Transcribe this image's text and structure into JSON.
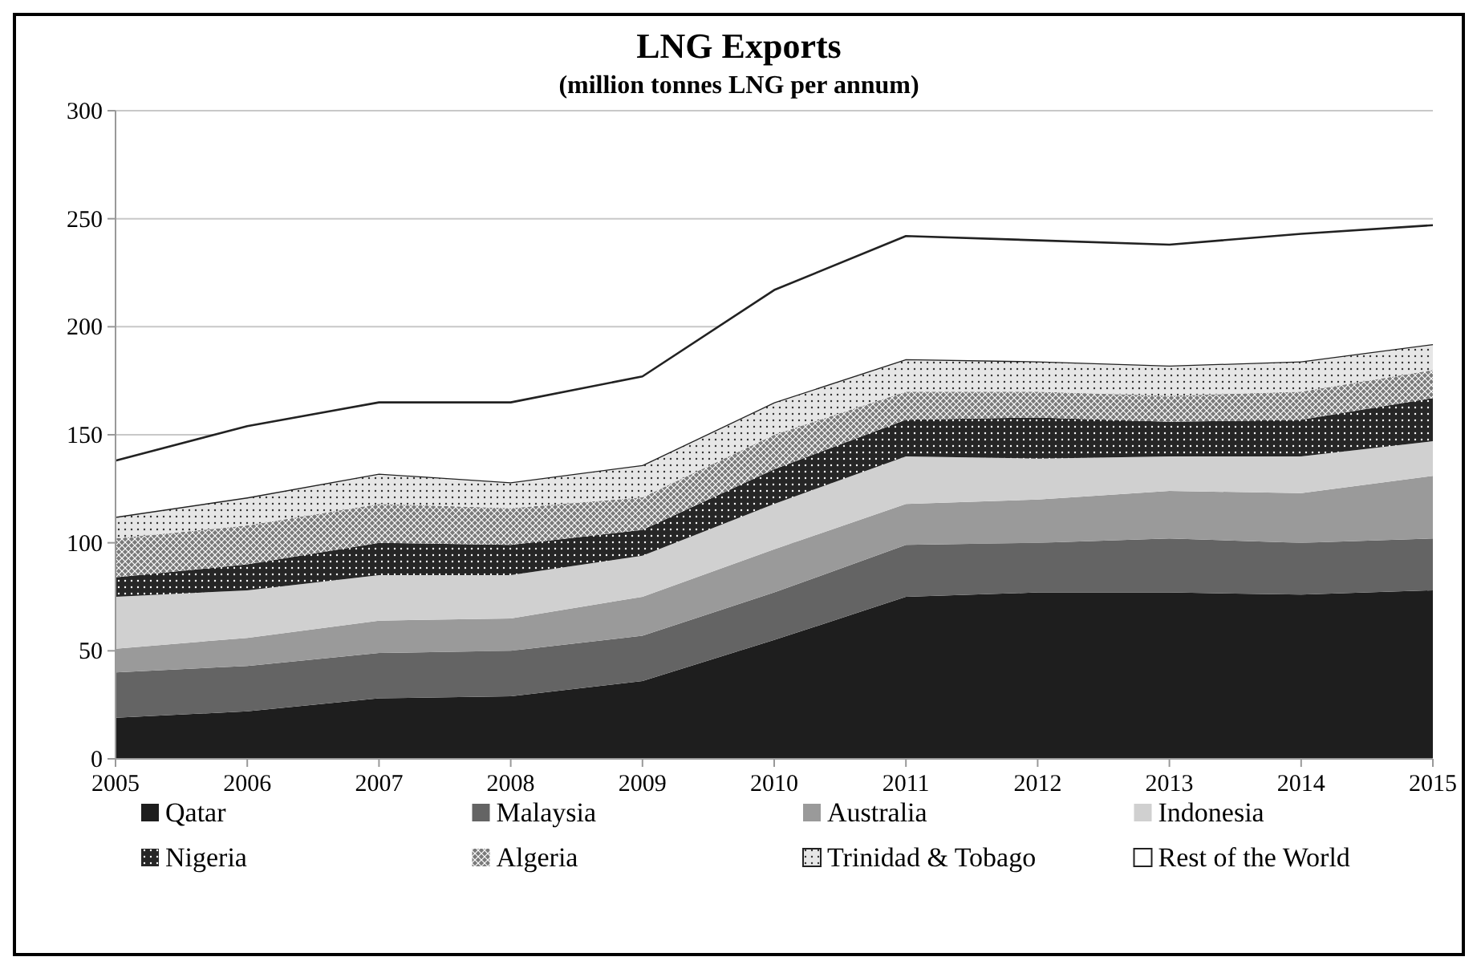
{
  "chart_data": {
    "type": "area",
    "stacked": true,
    "title": "LNG Exports",
    "subtitle": "(million tonnes LNG per annum)",
    "x": [
      2005,
      2006,
      2007,
      2008,
      2009,
      2010,
      2011,
      2012,
      2013,
      2014,
      2015
    ],
    "xlim": [
      2005,
      2015
    ],
    "xticks": [
      2005,
      2006,
      2007,
      2008,
      2009,
      2010,
      2011,
      2012,
      2013,
      2014,
      2015
    ],
    "ylim": [
      0,
      300
    ],
    "yticks": [
      0,
      50,
      100,
      150,
      200,
      250,
      300
    ],
    "grid": "y",
    "legend": "bottom",
    "series": [
      {
        "name": "Qatar",
        "color": "#1e1e1e",
        "values": [
          19,
          22,
          28,
          29,
          36,
          55,
          75,
          77,
          77,
          76,
          78
        ]
      },
      {
        "name": "Malaysia",
        "color": "#646464",
        "values": [
          21,
          21,
          21,
          21,
          21,
          22,
          24,
          23,
          25,
          24,
          24
        ]
      },
      {
        "name": "Australia",
        "color": "#9a9a9a",
        "values": [
          11,
          13,
          15,
          15,
          18,
          20,
          19,
          20,
          22,
          23,
          29
        ]
      },
      {
        "name": "Indonesia",
        "color": "#d0d0d0",
        "values": [
          24,
          22,
          21,
          20,
          19,
          21,
          22,
          19,
          16,
          17,
          16
        ]
      },
      {
        "name": "Nigeria",
        "color": "#262626",
        "values": [
          9,
          12,
          15,
          14,
          12,
          16,
          17,
          19,
          16,
          17,
          20
        ]
      },
      {
        "name": "Algeria",
        "color": "#7a7a7a",
        "values": [
          18,
          18,
          18,
          17,
          15,
          16,
          13,
          12,
          12,
          13,
          13
        ]
      },
      {
        "name": "Trinidad & Tobago",
        "color": "#e6e6e6",
        "values": [
          10,
          13,
          14,
          12,
          15,
          15,
          15,
          14,
          14,
          14,
          12
        ]
      },
      {
        "name": "Rest of the World",
        "color": "#ffffff",
        "values": [
          26,
          33,
          33,
          37,
          41,
          52,
          57,
          56,
          56,
          59,
          55
        ]
      }
    ]
  }
}
